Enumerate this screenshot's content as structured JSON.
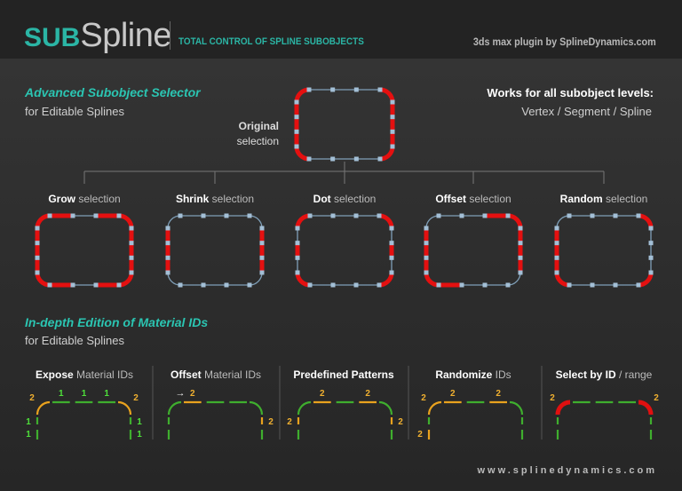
{
  "header": {
    "logo_sub": "SUB",
    "logo_spline": "Spline",
    "tagline": "TOTAL CONTROL OF SPLINE SUBOBJECTS",
    "plugin": "3ds max plugin by SplineDynamics.com"
  },
  "selector": {
    "title": "Advanced Subobject Selector",
    "subtitle": "for Editable Splines",
    "works_title": "Works for all subobject levels:",
    "levels": "Vertex / Segment / Spline",
    "original_label": {
      "bold": "Original",
      "rest": "selection"
    },
    "segment_order": "TL corner, top 1-3, TR corner, right 1-3, BR corner, bottom 3-1, BL corner, left 3-1",
    "original": [
      1,
      0,
      0,
      0,
      1,
      1,
      1,
      1,
      1,
      0,
      0,
      0,
      1,
      1,
      1,
      1
    ],
    "variants": [
      {
        "bold": "Grow",
        "rest": " selection",
        "selected": [
          1,
          1,
          0,
          1,
          1,
          1,
          1,
          1,
          1,
          1,
          0,
          1,
          1,
          1,
          1,
          1
        ]
      },
      {
        "bold": "Shrink",
        "rest": " selection",
        "selected": [
          0,
          0,
          0,
          0,
          0,
          1,
          1,
          1,
          0,
          0,
          0,
          0,
          0,
          1,
          1,
          1
        ]
      },
      {
        "bold": "Dot",
        "rest": " selection",
        "selected": [
          1,
          0,
          0,
          0,
          1,
          0,
          1,
          0,
          1,
          0,
          0,
          0,
          1,
          0,
          1,
          0
        ]
      },
      {
        "bold": "Offset",
        "rest": " selection",
        "selected": [
          0,
          0,
          0,
          1,
          1,
          1,
          1,
          1,
          0,
          0,
          0,
          1,
          1,
          1,
          1,
          1
        ]
      },
      {
        "bold": "Random",
        "rest": " selection",
        "selected": [
          0,
          0,
          0,
          0,
          1,
          0,
          0,
          0,
          1,
          0,
          0,
          0,
          1,
          1,
          1,
          1
        ]
      }
    ]
  },
  "material": {
    "title": "In-depth Edition of Material IDs",
    "subtitle": "for Editable Splines",
    "colors": {
      "id1": "#3fae2e",
      "id2": "#e9a21e",
      "selected": "#e01010",
      "label1": "#4ee03a",
      "label2": "#f0b030"
    },
    "segment_order": "left lower, left upper, TL corner, top 1-3, TR corner, right upper, right lower",
    "panels": [
      {
        "bold": "Expose",
        "rest": " Material IDs",
        "ids": [
          1,
          1,
          2,
          1,
          1,
          1,
          2,
          1,
          1
        ],
        "labels": [
          "1",
          "1",
          "2",
          "1",
          "1",
          "1",
          "2",
          "1",
          "1"
        ]
      },
      {
        "bold": "Offset",
        "rest": " Material IDs",
        "arrow": "→",
        "ids": [
          1,
          1,
          1,
          2,
          1,
          1,
          1,
          2,
          1
        ],
        "labels": [
          "",
          "",
          "",
          "2",
          "",
          "",
          "",
          "2",
          ""
        ]
      },
      {
        "bold": "Predefined Patterns",
        "rest": "",
        "ids": [
          1,
          2,
          1,
          2,
          1,
          2,
          1,
          2,
          1
        ],
        "labels": [
          "",
          "2",
          "",
          "2",
          "",
          "2",
          "",
          "2",
          ""
        ]
      },
      {
        "bold": "Randomize",
        "rest": " IDs",
        "ids": [
          2,
          1,
          2,
          2,
          1,
          2,
          1,
          1,
          1
        ],
        "labels": [
          "2",
          "",
          "2",
          "2",
          "",
          "2",
          "",
          "",
          ""
        ]
      },
      {
        "bold": "Select by ID",
        "rest": " / range",
        "ids": [
          1,
          1,
          "s",
          1,
          1,
          1,
          "s",
          1,
          1
        ],
        "labels": [
          "",
          "",
          "2",
          "",
          "",
          "",
          "2",
          "",
          ""
        ]
      }
    ]
  },
  "footer": "www.splinedynamics.com"
}
